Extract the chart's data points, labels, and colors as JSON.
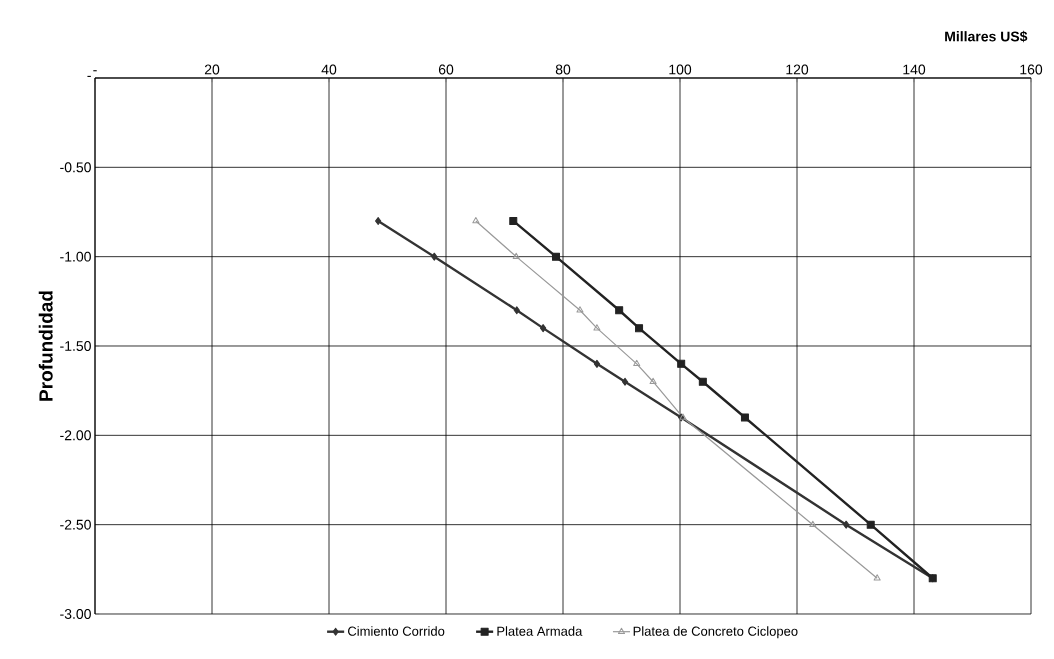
{
  "chart_data": {
    "type": "line",
    "xlabel": "Millares US$",
    "ylabel": "Profundidad",
    "xlim": [
      0,
      160
    ],
    "ylim": [
      -3,
      0
    ],
    "xticks": [
      {
        "value": 0,
        "label": "-"
      },
      20,
      40,
      60,
      80,
      100,
      120,
      140,
      160
    ],
    "yticks": [
      {
        "value": 0,
        "label": "-"
      },
      {
        "value": -0.5,
        "label": "-0.50"
      },
      {
        "value": -1,
        "label": "-1.00"
      },
      {
        "value": -1.5,
        "label": "-1.50"
      },
      {
        "value": -2,
        "label": "-2.00"
      },
      {
        "value": -2.5,
        "label": "-2.50"
      },
      {
        "value": -3,
        "label": "-3.00"
      }
    ],
    "grid": true,
    "legend": "bottom",
    "series": [
      {
        "name": "Cimiento Corrido",
        "color": "#333333",
        "marker": "diamond",
        "x": [
          48.4,
          58,
          72.1,
          76.6,
          85.8,
          90.6,
          100.2,
          128.4,
          143.2
        ],
        "values": [
          -0.8,
          -1.0,
          -1.3,
          -1.4,
          -1.6,
          -1.7,
          -1.9,
          -2.5,
          -2.8
        ]
      },
      {
        "name": "Platea Armada",
        "color": "#222222",
        "marker": "square",
        "x": [
          71.5,
          78.8,
          89.6,
          93.0,
          100.2,
          103.9,
          111.1,
          132.6,
          143.2
        ],
        "values": [
          -0.8,
          -1.0,
          -1.3,
          -1.4,
          -1.6,
          -1.7,
          -1.9,
          -2.5,
          -2.8
        ]
      },
      {
        "name": "Platea de Concreto Ciclopeo",
        "color": "#999999",
        "marker": "triangle",
        "x": [
          65.1,
          72,
          82.9,
          85.8,
          92.6,
          95.4,
          100.5,
          122.7,
          133.7
        ],
        "values": [
          -0.8,
          -1.0,
          -1.3,
          -1.4,
          -1.6,
          -1.7,
          -1.9,
          -2.5,
          -2.8
        ]
      }
    ]
  }
}
